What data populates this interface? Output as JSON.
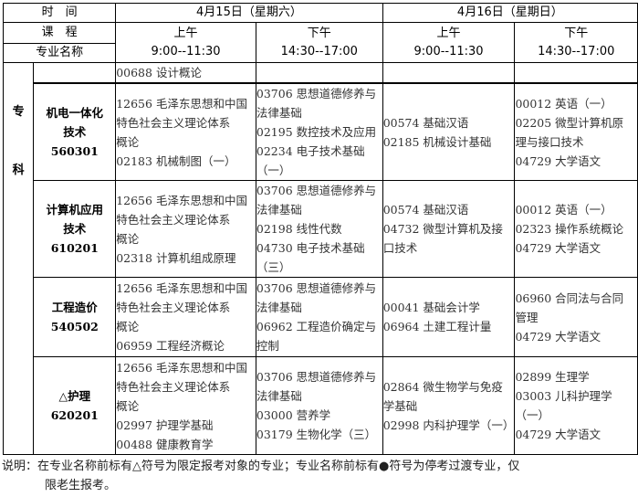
{
  "header": {
    "time_label": "时　间",
    "course_label": "课　程",
    "major_label": "专业名称",
    "days": [
      {
        "date": "4月15日（星期六）",
        "sessions": [
          {
            "name": "上午",
            "time": "9:00--11:30"
          },
          {
            "name": "下午",
            "time": "14:30--17:00"
          }
        ]
      },
      {
        "date": "4月16日（星期日）",
        "sessions": [
          {
            "name": "上午",
            "time": "9:00--11:30"
          },
          {
            "name": "下午",
            "time": "14:30--17:00"
          }
        ]
      }
    ]
  },
  "level": "专\n科",
  "rows": [
    {
      "major": "",
      "code": "",
      "cells": [
        [
          "00688 设计概论"
        ],
        [],
        [],
        []
      ]
    },
    {
      "major": "机电一体化\n技术",
      "code": "560301",
      "cells": [
        [
          "12656 毛泽东思想和中国",
          "特色社会主义理论体系",
          "概论",
          "02183 机械制图（一）"
        ],
        [
          "03706 思想道德修养与",
          "法律基础",
          "02195 数控技术及应用",
          "02234 电子技术基础",
          "（一）"
        ],
        [
          "00574 基础汉语",
          "02185 机械设计基础"
        ],
        [
          "00012 英语（一）",
          "02205 微型计算机原",
          "理与接口技术",
          "04729 大学语文"
        ]
      ]
    },
    {
      "major": "计算机应用\n技术",
      "code": "610201",
      "cells": [
        [
          "12656 毛泽东思想和中国",
          "特色社会主义理论体系",
          "概论",
          "02318 计算机组成原理"
        ],
        [
          "03706 思想道德修养与",
          "法律基础",
          "02198 线性代数",
          "04730 电子技术基础",
          "（三）"
        ],
        [
          "00574 基础汉语",
          "04732 微型计算机及接",
          "口技术"
        ],
        [
          "00012 英语（一）",
          "02323 操作系统概论",
          "04729 大学语文"
        ]
      ]
    },
    {
      "major": "工程造价",
      "code": "540502",
      "cells": [
        [
          "12656 毛泽东思想和中国",
          "特色社会主义理论体系",
          "概论",
          "06959 工程经济概论"
        ],
        [
          "03706 思想道德修养与",
          "法律基础",
          "06962 工程造价确定与",
          "控制"
        ],
        [
          "00041 基础会计学",
          "06964 土建工程计量"
        ],
        [
          "06960 合同法与合同",
          "管理",
          "04729 大学语文"
        ]
      ]
    },
    {
      "major": "△护理",
      "code": "620201",
      "cells": [
        [
          "12656 毛泽东思想和中国",
          "特色社会主义理论体系",
          "概论",
          "02997 护理学基础",
          "00488 健康教育学"
        ],
        [
          "03706 思想道德修养与",
          "法律基础",
          "03000 营养学",
          "03179 生物化学（三）"
        ],
        [
          "02864 微生物学与免疫",
          "学基础",
          "02998 内科护理学（一）"
        ],
        [
          "02899 生理学",
          "03003 儿科护理学",
          "（一）",
          "04729 大学语文"
        ]
      ]
    }
  ],
  "note": {
    "line1": "说明：在专业名称前标有△符号为限定报考对象的专业；专业名称前标有●符号为停考过渡专业，仅",
    "line2": "限老生报考。"
  }
}
